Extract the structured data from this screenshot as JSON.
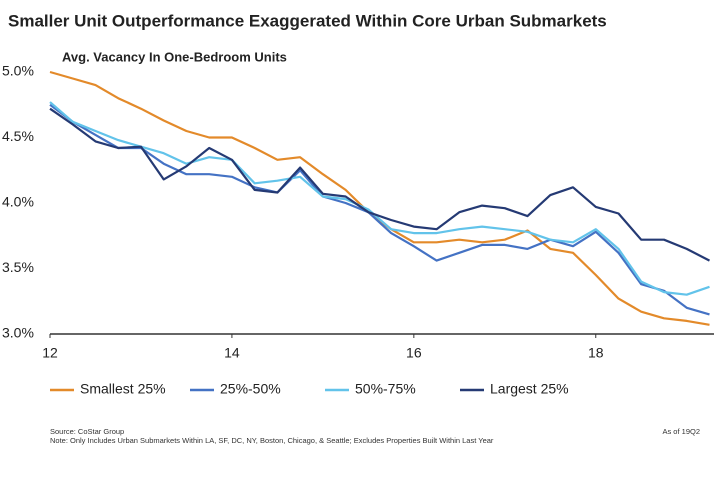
{
  "chart_data": {
    "type": "line",
    "title": "Smaller Unit Outperformance Exaggerated Within Core Urban Submarkets",
    "subtitle": "Avg. Vacancy In One-Bedroom Units",
    "x": [
      12,
      12.25,
      12.5,
      12.75,
      13,
      13.25,
      13.5,
      13.75,
      14,
      14.25,
      14.5,
      14.75,
      15,
      15.25,
      15.5,
      15.75,
      16,
      16.25,
      16.5,
      16.75,
      17,
      17.25,
      17.5,
      17.75,
      18,
      18.25,
      18.5,
      18.75,
      19,
      19.25
    ],
    "xlim": [
      12,
      19.3
    ],
    "xticks": [
      12,
      14,
      16,
      18
    ],
    "ylim": [
      3.0,
      5.0
    ],
    "yticks": [
      {
        "value": 3.0,
        "label": "3.0%"
      },
      {
        "value": 3.5,
        "label": "3.5%"
      },
      {
        "value": 4.0,
        "label": "4.0%"
      },
      {
        "value": 4.5,
        "label": "4.5%"
      },
      {
        "value": 5.0,
        "label": "5.0%"
      }
    ],
    "grid": false,
    "legend": "bottom",
    "series": [
      {
        "name": "Smallest 25%",
        "color": "#e38a2a",
        "values": [
          5.0,
          4.95,
          4.9,
          4.8,
          4.72,
          4.63,
          4.55,
          4.5,
          4.5,
          4.42,
          4.33,
          4.35,
          4.22,
          4.1,
          3.93,
          3.8,
          3.7,
          3.7,
          3.72,
          3.7,
          3.72,
          3.79,
          3.65,
          3.62,
          3.45,
          3.27,
          3.17,
          3.12,
          3.1,
          3.07
        ]
      },
      {
        "name": "25%-50%",
        "color": "#4472c4",
        "values": [
          4.75,
          4.62,
          4.52,
          4.42,
          4.42,
          4.3,
          4.22,
          4.22,
          4.2,
          4.12,
          4.08,
          4.25,
          4.05,
          4.0,
          3.93,
          3.77,
          3.67,
          3.56,
          3.62,
          3.68,
          3.68,
          3.65,
          3.72,
          3.67,
          3.78,
          3.62,
          3.38,
          3.33,
          3.2,
          3.15
        ]
      },
      {
        "name": "50%-75%",
        "color": "#62c3ea",
        "values": [
          4.77,
          4.62,
          4.55,
          4.48,
          4.43,
          4.38,
          4.3,
          4.35,
          4.33,
          4.15,
          4.17,
          4.2,
          4.05,
          4.03,
          3.95,
          3.8,
          3.77,
          3.77,
          3.8,
          3.82,
          3.8,
          3.78,
          3.72,
          3.7,
          3.8,
          3.65,
          3.4,
          3.32,
          3.3,
          3.36
        ]
      },
      {
        "name": "Largest 25%",
        "color": "#253a74",
        "values": [
          4.72,
          4.6,
          4.47,
          4.42,
          4.43,
          4.18,
          4.28,
          4.42,
          4.33,
          4.1,
          4.08,
          4.27,
          4.07,
          4.05,
          3.93,
          3.87,
          3.82,
          3.8,
          3.93,
          3.98,
          3.96,
          3.9,
          4.06,
          4.12,
          3.97,
          3.92,
          3.72,
          3.72,
          3.65,
          3.56
        ]
      }
    ],
    "source": "Source: CoStar Group",
    "note": "Note: Only Includes Urban Submarkets Within LA, SF, DC, NY, Boston, Chicago, & Seattle; Excludes Properties Built Within Last Year",
    "as_of": "As of 19Q2"
  }
}
